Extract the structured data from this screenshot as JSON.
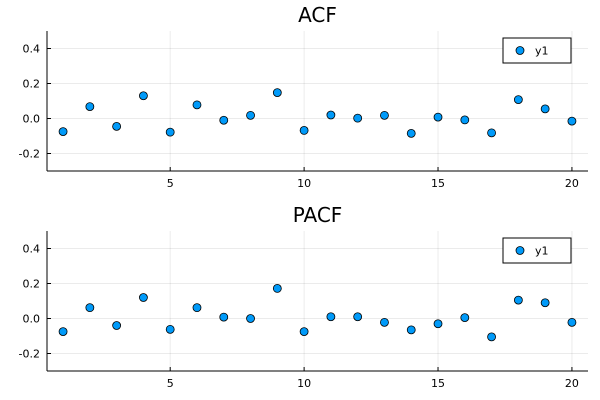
{
  "chart_data": [
    {
      "type": "scatter",
      "title": "ACF",
      "xlabel": "",
      "ylabel": "",
      "xlim": [
        0.4,
        20.6
      ],
      "ylim": [
        -0.3,
        0.5
      ],
      "xticks": [
        5,
        10,
        15,
        20
      ],
      "yticks": [
        -0.2,
        0.0,
        0.2,
        0.4
      ],
      "ytick_labels": [
        "-0.2",
        "0.0",
        "0.2",
        "0.4"
      ],
      "grid": true,
      "legend_position": "top-right",
      "series": [
        {
          "name": "y1",
          "color": "#009af9",
          "x": [
            1,
            2,
            3,
            4,
            5,
            6,
            7,
            8,
            9,
            10,
            11,
            12,
            13,
            14,
            15,
            16,
            17,
            18,
            19,
            20
          ],
          "y": [
            -0.075,
            0.068,
            -0.045,
            0.13,
            -0.078,
            0.078,
            -0.01,
            0.018,
            0.148,
            -0.068,
            0.02,
            0.002,
            0.018,
            -0.085,
            0.008,
            -0.008,
            -0.082,
            0.108,
            0.055,
            -0.015
          ]
        }
      ]
    },
    {
      "type": "scatter",
      "title": "PACF",
      "xlabel": "",
      "ylabel": "",
      "xlim": [
        0.4,
        20.6
      ],
      "ylim": [
        -0.3,
        0.5
      ],
      "xticks": [
        5,
        10,
        15,
        20
      ],
      "yticks": [
        -0.2,
        0.0,
        0.2,
        0.4
      ],
      "ytick_labels": [
        "-0.2",
        "0.0",
        "0.2",
        "0.4"
      ],
      "grid": true,
      "legend_position": "top-right",
      "series": [
        {
          "name": "y1",
          "color": "#009af9",
          "x": [
            1,
            2,
            3,
            4,
            5,
            6,
            7,
            8,
            9,
            10,
            11,
            12,
            13,
            14,
            15,
            16,
            17,
            18,
            19,
            20
          ],
          "y": [
            -0.075,
            0.062,
            -0.04,
            0.12,
            -0.062,
            0.062,
            0.008,
            0.0,
            0.172,
            -0.075,
            0.01,
            0.01,
            -0.022,
            -0.065,
            -0.03,
            0.005,
            -0.105,
            0.105,
            0.09,
            -0.022
          ]
        }
      ]
    }
  ]
}
